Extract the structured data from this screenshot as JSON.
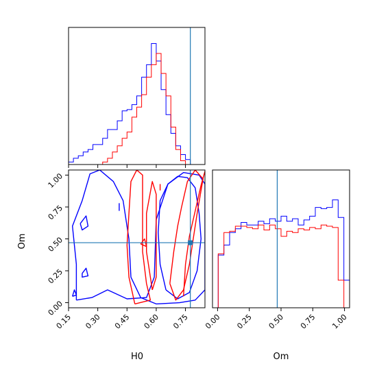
{
  "chart_data": {
    "type": "corner",
    "parameters": [
      "H0",
      "Om"
    ],
    "xlabel_h0": "H0",
    "xlabel_om": "Om",
    "ylabel_om": "Om",
    "h0_ticks": [
      "0.15",
      "0.30",
      "0.45",
      "0.60",
      "0.75"
    ],
    "om_ticks": [
      "0.00",
      "0.25",
      "0.50",
      "0.75",
      "1.00"
    ],
    "h0_range": [
      0.15,
      0.85
    ],
    "om_range": [
      -0.04,
      1.04
    ],
    "truth": {
      "H0": 0.775,
      "Om": 0.47
    },
    "colors": {
      "blue": "#0000ff",
      "red": "#ff0000",
      "truth": "#1f77b4"
    },
    "hist_h0": {
      "edges_start": 0.15,
      "bin_width": 0.025,
      "blue": [
        0.02,
        0.05,
        0.07,
        0.1,
        0.12,
        0.16,
        0.16,
        0.21,
        0.28,
        0.28,
        0.35,
        0.43,
        0.44,
        0.48,
        0.55,
        0.7,
        0.8,
        0.97,
        0.83,
        0.6,
        0.4,
        0.25,
        0.15,
        0.08,
        0.04
      ],
      "red": [
        0.0,
        0.0,
        0.0,
        0.0,
        0.0,
        0.0,
        0.0,
        0.02,
        0.05,
        0.1,
        0.15,
        0.21,
        0.26,
        0.38,
        0.46,
        0.56,
        0.7,
        0.8,
        0.89,
        0.73,
        0.55,
        0.3,
        0.12,
        0.03,
        0.0
      ]
    },
    "hist_om": {
      "edges_start": -0.04,
      "bin_width": 0.045,
      "blue": [
        0.0,
        0.42,
        0.5,
        0.6,
        0.63,
        0.68,
        0.66,
        0.66,
        0.69,
        0.67,
        0.71,
        0.69,
        0.73,
        0.69,
        0.71,
        0.66,
        0.7,
        0.73,
        0.8,
        0.79,
        0.8,
        0.86,
        0.72,
        0.22
      ],
      "red": [
        0.0,
        0.43,
        0.6,
        0.61,
        0.65,
        0.65,
        0.64,
        0.63,
        0.66,
        0.62,
        0.66,
        0.63,
        0.57,
        0.61,
        0.6,
        0.63,
        0.62,
        0.64,
        0.63,
        0.66,
        0.65,
        0.64,
        0.22,
        0.0
      ]
    },
    "contours": {
      "blue": [
        {
          "level": "outer",
          "points": [
            [
              0.19,
              0.02
            ],
            [
              0.19,
              0.3
            ],
            [
              0.17,
              0.6
            ],
            [
              0.22,
              0.8
            ],
            [
              0.26,
              1.01
            ],
            [
              0.31,
              1.04
            ],
            [
              0.38,
              0.95
            ],
            [
              0.43,
              0.8
            ],
            [
              0.46,
              0.5
            ],
            [
              0.47,
              0.2
            ],
            [
              0.52,
              0.04
            ],
            [
              0.6,
              -0.01
            ],
            [
              0.72,
              0.0
            ],
            [
              0.8,
              0.02
            ],
            [
              0.85,
              0.1
            ],
            [
              0.85,
              0.4
            ],
            [
              0.85,
              0.75
            ],
            [
              0.85,
              0.93
            ],
            [
              0.82,
              1.0
            ],
            [
              0.74,
              1.02
            ],
            [
              0.66,
              0.93
            ],
            [
              0.6,
              0.65
            ],
            [
              0.59,
              0.2
            ],
            [
              0.55,
              0.04
            ],
            [
              0.45,
              0.03
            ],
            [
              0.35,
              0.1
            ],
            [
              0.27,
              0.04
            ],
            [
              0.19,
              0.02
            ]
          ]
        },
        {
          "level": "inner",
          "points": [
            [
              0.65,
              0.1
            ],
            [
              0.62,
              0.3
            ],
            [
              0.61,
              0.55
            ],
            [
              0.62,
              0.8
            ],
            [
              0.66,
              0.93
            ],
            [
              0.71,
              0.99
            ],
            [
              0.76,
              0.98
            ],
            [
              0.8,
              0.9
            ],
            [
              0.82,
              0.7
            ],
            [
              0.83,
              0.5
            ],
            [
              0.81,
              0.25
            ],
            [
              0.77,
              0.08
            ],
            [
              0.71,
              0.03
            ],
            [
              0.65,
              0.1
            ]
          ]
        },
        {
          "level": "island",
          "points": [
            [
              0.21,
              0.62
            ],
            [
              0.24,
              0.68
            ],
            [
              0.25,
              0.6
            ],
            [
              0.22,
              0.57
            ],
            [
              0.21,
              0.62
            ]
          ]
        },
        {
          "level": "island",
          "points": [
            [
              0.22,
              0.23
            ],
            [
              0.24,
              0.27
            ],
            [
              0.25,
              0.21
            ],
            [
              0.22,
              0.2
            ],
            [
              0.22,
              0.23
            ]
          ]
        },
        {
          "level": "island",
          "points": [
            [
              0.17,
              0.05
            ],
            [
              0.18,
              0.1
            ],
            [
              0.19,
              0.06
            ],
            [
              0.17,
              0.05
            ]
          ]
        },
        {
          "level": "island",
          "points": [
            [
              0.41,
              0.72
            ],
            [
              0.41,
              0.78
            ]
          ]
        }
      ],
      "red": [
        {
          "level": "outer",
          "points": [
            [
              0.49,
              -0.01
            ],
            [
              0.46,
              0.2
            ],
            [
              0.45,
              0.45
            ],
            [
              0.46,
              0.7
            ],
            [
              0.47,
              0.95
            ],
            [
              0.5,
              1.04
            ],
            [
              0.53,
              1.0
            ],
            [
              0.53,
              0.7
            ],
            [
              0.53,
              0.4
            ],
            [
              0.55,
              0.15
            ],
            [
              0.57,
              0.02
            ],
            [
              0.49,
              -0.01
            ]
          ]
        },
        {
          "level": "inner",
          "points": [
            [
              0.58,
              0.1
            ],
            [
              0.55,
              0.4
            ],
            [
              0.55,
              0.7
            ],
            [
              0.58,
              0.95
            ],
            [
              0.6,
              0.85
            ],
            [
              0.6,
              0.5
            ],
            [
              0.6,
              0.2
            ],
            [
              0.58,
              0.1
            ]
          ]
        },
        {
          "level": "band",
          "points": [
            [
              0.67,
              0.15
            ],
            [
              0.69,
              0.4
            ],
            [
              0.71,
              0.6
            ],
            [
              0.73,
              0.75
            ],
            [
              0.76,
              0.95
            ],
            [
              0.8,
              1.04
            ],
            [
              0.84,
              0.97
            ],
            [
              0.81,
              0.7
            ],
            [
              0.79,
              0.5
            ],
            [
              0.77,
              0.3
            ],
            [
              0.74,
              0.1
            ],
            [
              0.7,
              0.02
            ],
            [
              0.67,
              0.15
            ]
          ]
        },
        {
          "level": "band-inner",
          "points": [
            [
              0.74,
              0.05
            ],
            [
              0.75,
              0.3
            ],
            [
              0.77,
              0.52
            ],
            [
              0.8,
              0.72
            ],
            [
              0.83,
              0.92
            ],
            [
              0.85,
              1.03
            ]
          ]
        },
        {
          "level": "island",
          "points": [
            [
              0.52,
              0.46
            ],
            [
              0.54,
              0.5
            ],
            [
              0.55,
              0.44
            ],
            [
              0.52,
              0.46
            ]
          ]
        },
        {
          "level": "island",
          "points": [
            [
              0.62,
              0.88
            ],
            [
              0.62,
              0.93
            ]
          ]
        }
      ]
    }
  }
}
